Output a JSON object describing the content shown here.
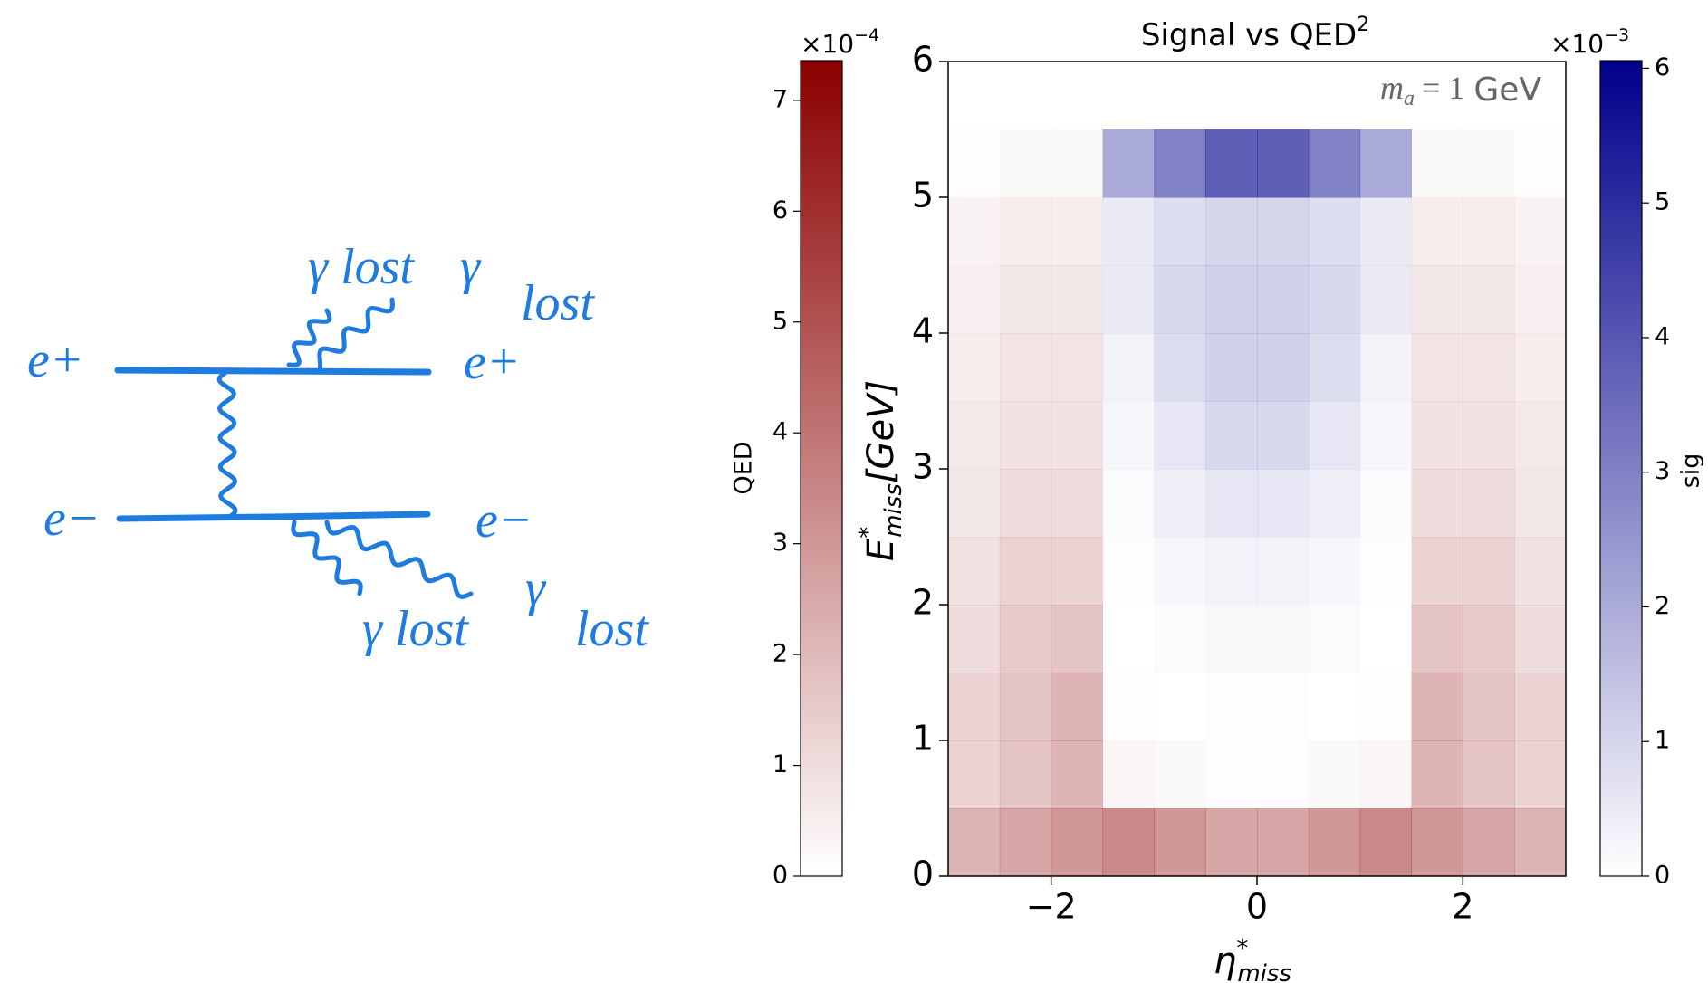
{
  "diagram": {
    "labels": [
      "e+",
      "e−",
      "γ lost",
      "γ",
      "e+",
      "lost",
      "e−",
      "γ",
      "lost",
      "γ lost"
    ]
  },
  "chart_data": {
    "type": "heatmap",
    "title": "Signal vs QED",
    "title_superscript": "2",
    "annotation": {
      "symbol": "m",
      "subscript": "a",
      "equals": "= 1",
      "unit": "GeV"
    },
    "x_label": {
      "symbol": "η",
      "superscript": "*",
      "subscript": "miss"
    },
    "y_label": {
      "symbol": "E",
      "superscript": "*",
      "subscript": "miss",
      "unit": "[GeV]"
    },
    "xlim": [
      -3,
      3
    ],
    "ylim": [
      0,
      6
    ],
    "xticks": [
      {
        "value": -2,
        "label": "−2"
      },
      0,
      2
    ],
    "yticks": [
      0,
      1,
      2,
      3,
      4,
      5,
      6
    ],
    "x_bins": [
      -3,
      -2.5,
      -2,
      -1.5,
      -1,
      -0.5,
      0,
      0.5,
      1,
      1.5,
      2,
      2.5,
      3
    ],
    "y_bins": [
      0,
      0.5,
      1,
      1.5,
      2,
      2.5,
      3,
      3.5,
      4,
      4.5,
      5,
      5.5,
      6
    ],
    "layers": [
      {
        "label": "QED",
        "color": "#8b0000",
        "colorbar_side": "left",
        "offset_base": "×10",
        "offset_exponent": "−4",
        "clim": [
          0,
          7.35
        ],
        "ticks": [
          0,
          1,
          2,
          3,
          4,
          5,
          6,
          7
        ],
        "values": [
          [
            2.5,
            3,
            3.5,
            4,
            3.5,
            3,
            3,
            3.5,
            4,
            3.5,
            3,
            2.5
          ],
          [
            1.5,
            2,
            2.5,
            0.3,
            0.2,
            0.1,
            0.1,
            0.2,
            0.3,
            2.5,
            2,
            1.5
          ],
          [
            1.5,
            2,
            2.5,
            0.1,
            0,
            0,
            0,
            0,
            0.1,
            2.5,
            2,
            1.5
          ],
          [
            1.2,
            1.8,
            2,
            0,
            0,
            0,
            0,
            0,
            0,
            2,
            1.8,
            1.2
          ],
          [
            1,
            1.5,
            1.5,
            0,
            0,
            0,
            0,
            0,
            0,
            1.5,
            1.5,
            1
          ],
          [
            0.8,
            1.2,
            1.2,
            0,
            0,
            0,
            0,
            0,
            0,
            1.2,
            1.2,
            0.8
          ],
          [
            0.7,
            1,
            1,
            0,
            0,
            0,
            0,
            0,
            0,
            1,
            1,
            0.7
          ],
          [
            0.6,
            0.9,
            0.9,
            0,
            0,
            0,
            0,
            0,
            0,
            0.9,
            0.9,
            0.6
          ],
          [
            0.5,
            0.8,
            0.8,
            0,
            0,
            0,
            0,
            0,
            0,
            0.8,
            0.8,
            0.5
          ],
          [
            0.4,
            0.6,
            0.6,
            0,
            0,
            0,
            0,
            0,
            0,
            0.6,
            0.6,
            0.4
          ],
          [
            0.1,
            0.2,
            0.2,
            0,
            0,
            0,
            0,
            0,
            0,
            0.2,
            0.2,
            0.1
          ],
          [
            0,
            0,
            0,
            0,
            0,
            0,
            0,
            0,
            0,
            0,
            0,
            0
          ]
        ]
      },
      {
        "label": "sig",
        "color": "#00008b",
        "colorbar_side": "right",
        "offset_base": "×10",
        "offset_exponent": "−3",
        "clim": [
          0,
          6.05
        ],
        "ticks": [
          0,
          1,
          2,
          3,
          4,
          5,
          6
        ],
        "values": [
          [
            0,
            0,
            0,
            0,
            0,
            0,
            0,
            0,
            0,
            0,
            0,
            0
          ],
          [
            0,
            0,
            0,
            0,
            0,
            0,
            0,
            0,
            0,
            0,
            0,
            0
          ],
          [
            0,
            0,
            0,
            0,
            0,
            0.05,
            0.05,
            0,
            0,
            0,
            0,
            0
          ],
          [
            0,
            0,
            0,
            0,
            0.1,
            0.15,
            0.15,
            0.1,
            0,
            0,
            0,
            0
          ],
          [
            0,
            0,
            0,
            0.05,
            0.2,
            0.3,
            0.3,
            0.2,
            0.05,
            0,
            0,
            0
          ],
          [
            0,
            0,
            0,
            0.1,
            0.4,
            0.6,
            0.6,
            0.4,
            0.1,
            0,
            0,
            0
          ],
          [
            0,
            0,
            0,
            0.2,
            0.6,
            0.9,
            0.9,
            0.6,
            0.2,
            0,
            0,
            0
          ],
          [
            0,
            0,
            0,
            0.3,
            0.8,
            1.1,
            1.1,
            0.8,
            0.3,
            0,
            0,
            0
          ],
          [
            0,
            0,
            0,
            0.5,
            0.9,
            1.1,
            1.1,
            0.9,
            0.5,
            0,
            0,
            0
          ],
          [
            0,
            0,
            0,
            0.5,
            0.8,
            1,
            1,
            0.8,
            0.5,
            0,
            0,
            0
          ],
          [
            0,
            0,
            0,
            2,
            3,
            3.8,
            3.8,
            3,
            2,
            0,
            0,
            0
          ],
          [
            0,
            0,
            0,
            0,
            0,
            0,
            0,
            0,
            0,
            0,
            0,
            0
          ]
        ]
      }
    ]
  }
}
